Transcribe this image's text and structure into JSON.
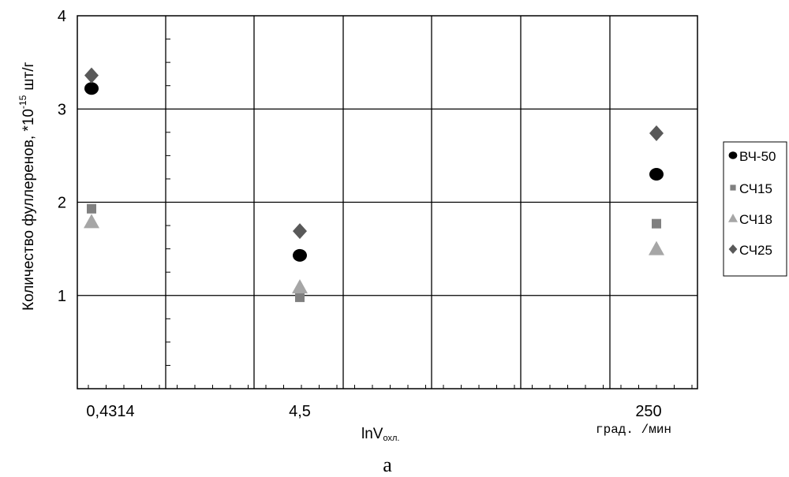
{
  "chart_data": {
    "type": "scatter",
    "title": "",
    "xlabel": "lnV",
    "xlabel_sub": "охл.",
    "xlabel_units": "град. /мин",
    "ylabel": "Количество фуллеренов, *10",
    "ylabel_exp": "-15",
    "ylabel_units": "шт/г",
    "ylim": [
      0,
      4
    ],
    "y_ticks": [
      "1",
      "2",
      "3",
      "4"
    ],
    "categories": [
      "0,4314",
      "4,5",
      "250"
    ],
    "series": [
      {
        "name": "ВЧ-50",
        "marker": "circle",
        "color": "#000000",
        "values": [
          3.22,
          1.43,
          2.3
        ]
      },
      {
        "name": "СЧ15",
        "marker": "square",
        "color": "#808080",
        "values": [
          1.93,
          0.98,
          1.77
        ]
      },
      {
        "name": "СЧ18",
        "marker": "triangle",
        "color": "#a6a6a6",
        "values": [
          1.79,
          1.09,
          1.5
        ]
      },
      {
        "name": "СЧ25",
        "marker": "diamond",
        "color": "#595959",
        "values": [
          3.36,
          1.69,
          2.74
        ]
      }
    ],
    "grid": true,
    "legend_position": "right",
    "caption": "а"
  }
}
